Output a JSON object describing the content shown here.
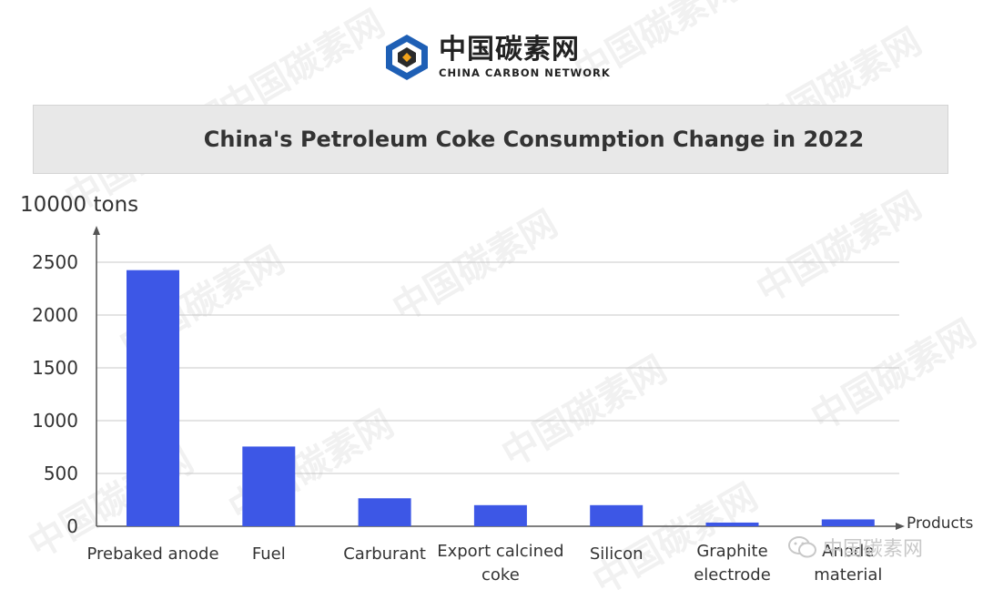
{
  "logo": {
    "cn_text": "中国碳素网",
    "en_text": "CHINA CARBON NETWORK"
  },
  "watermark": {
    "cn": "中国碳素网",
    "en": "CHINA CARBON NETWORK"
  },
  "footer_watermark": {
    "text": "中国碳素网",
    "icon": "wechat-icon"
  },
  "chart_data": {
    "type": "bar",
    "title": "China's Petroleum Coke Consumption Change in 2022",
    "ylabel": "10000 tons",
    "xlabel": "Products",
    "categories": [
      "Prebaked anode",
      "Fuel",
      "Carburant",
      "Export calcined coke",
      "Silicon",
      "Graphite electrode",
      "Anode material"
    ],
    "category_lines": [
      [
        "Prebaked anode"
      ],
      [
        "Fuel"
      ],
      [
        "Carburant"
      ],
      [
        "Export calcined",
        "coke"
      ],
      [
        "Silicon"
      ],
      [
        "Graphite",
        "electrode"
      ],
      [
        "Anode",
        "material"
      ]
    ],
    "values": [
      2425,
      755,
      265,
      200,
      200,
      35,
      65
    ],
    "ylim": [
      0,
      2500
    ],
    "yticks": [
      0,
      500,
      1000,
      1500,
      2000,
      2500
    ],
    "grid": true,
    "bar_color": "#3d57e6"
  }
}
